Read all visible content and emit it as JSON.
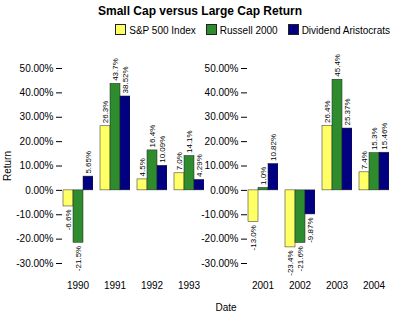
{
  "chart_data": {
    "type": "bar",
    "title": "Small Cap versus Large Cap Return",
    "x_label": "Date",
    "y_label": "Return",
    "categories": [
      "1990",
      "1991",
      "1992",
      "1993",
      null,
      "2001",
      "2002",
      "2003",
      "2004"
    ],
    "series": [
      {
        "name": "S&P 500 Index",
        "color": "#ffff66",
        "values": [
          -6.6,
          26.3,
          4.5,
          7.0,
          null,
          -13.0,
          -23.4,
          26.4,
          7.4
        ],
        "value_labels": [
          "-6.6%",
          "26.3%",
          "4.5%",
          "7.0%",
          null,
          "-13.0%",
          "-23.4%",
          "26.4%",
          "7.4%"
        ]
      },
      {
        "name": "Russell 2000",
        "color": "#2e8b2e",
        "values": [
          -21.5,
          43.7,
          16.4,
          14.1,
          null,
          1.0,
          -21.6,
          45.4,
          15.3
        ],
        "value_labels": [
          "-21.5%",
          "43.7%",
          "16.4%",
          "14.1%",
          null,
          "1.0%",
          "-21.6%",
          "45.4%",
          "15.3%"
        ]
      },
      {
        "name": "Dividend Aristocrats",
        "color": "#000080",
        "values": [
          5.65,
          38.52,
          10.09,
          4.29,
          null,
          10.82,
          -9.87,
          25.37,
          15.46
        ],
        "value_labels": [
          "5.65%",
          "38.52%",
          "10.09%",
          "4.29%",
          null,
          "10.82%",
          "-9.87%",
          "25.37%",
          "15.46%"
        ]
      }
    ],
    "ylim": [
      -30,
      50
    ],
    "yticks": [
      {
        "value": -30,
        "label": "-30.00%"
      },
      {
        "value": -20,
        "label": "-20.00%"
      },
      {
        "value": -10,
        "label": "-10.00%"
      },
      {
        "value": 0,
        "label": "0.00%"
      },
      {
        "value": 10,
        "label": "10.00%"
      },
      {
        "value": 20,
        "label": "20.00%"
      },
      {
        "value": 30,
        "label": "30.00%"
      },
      {
        "value": 40,
        "label": "40.00%"
      },
      {
        "value": 50,
        "label": "50.00%"
      }
    ],
    "grid": false,
    "legend": "top-right",
    "data_labels": true
  }
}
